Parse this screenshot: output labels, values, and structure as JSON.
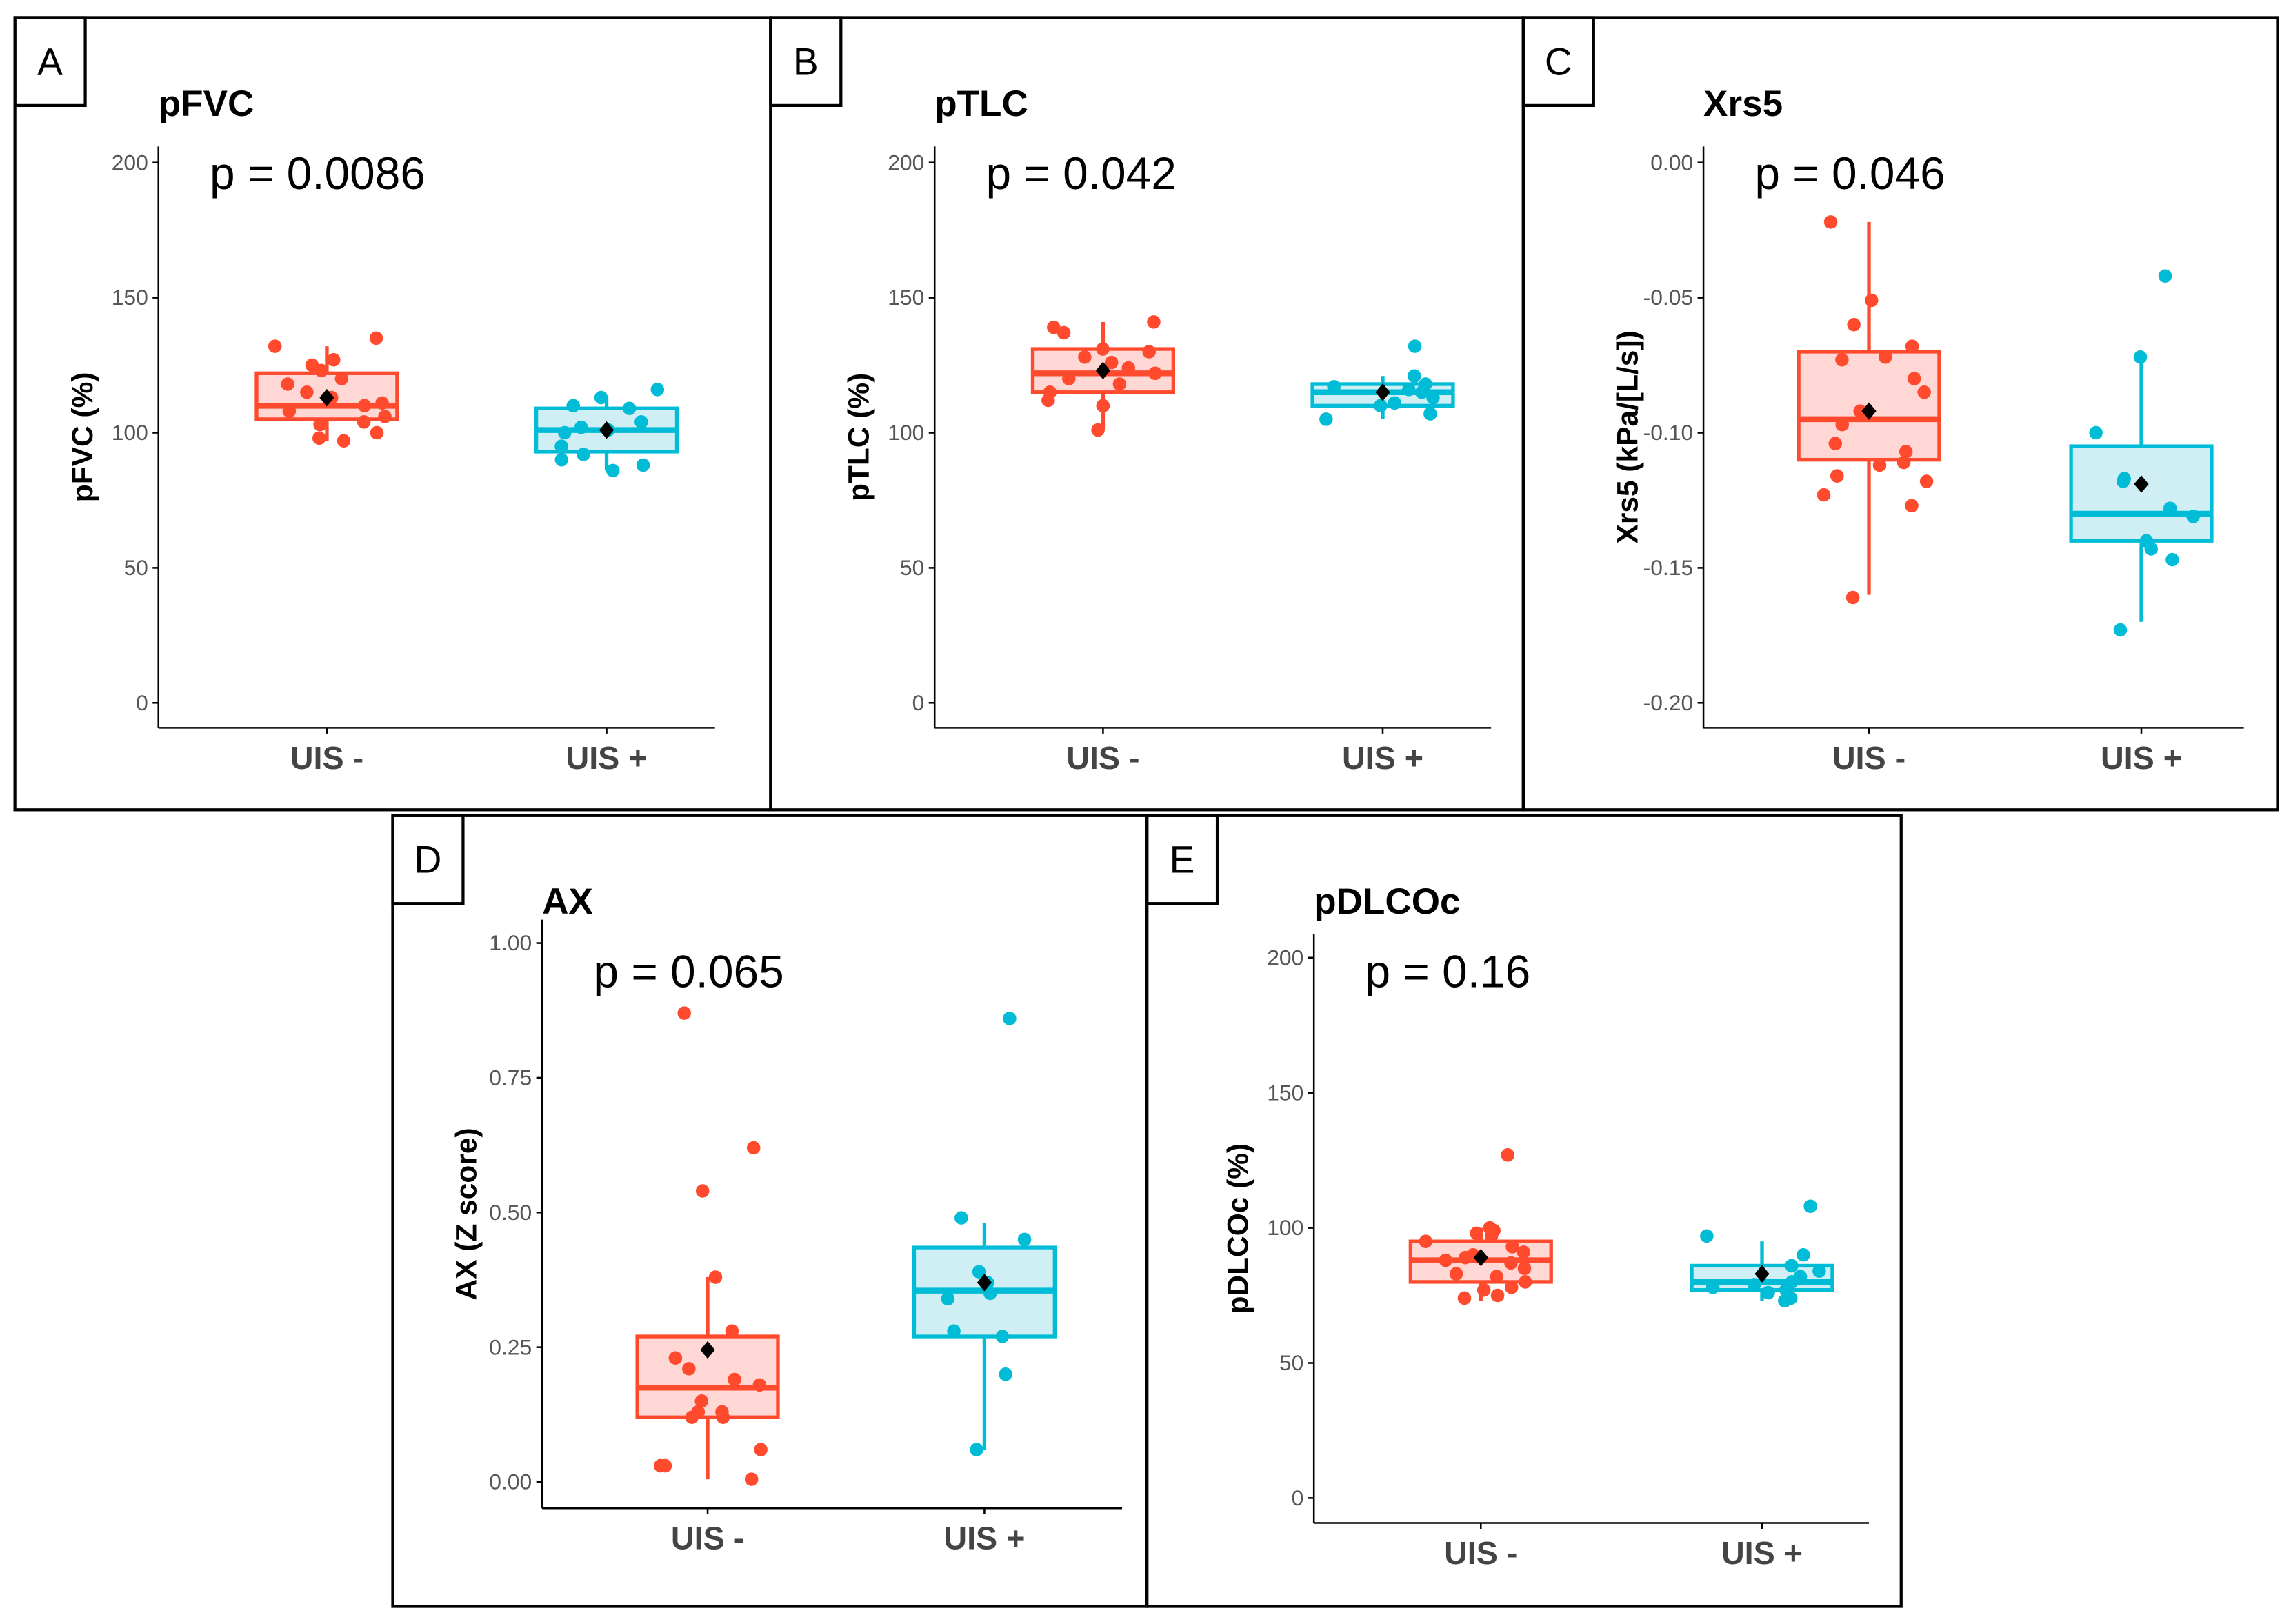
{
  "colors": {
    "neg": "#FF4A2E",
    "neg_fill": "#FFD8D5",
    "pos": "#00BCD6",
    "pos_fill": "#D0EFF5",
    "mean": "#000000"
  },
  "chart_data": [
    {
      "type": "box",
      "panel_label": "A",
      "title": "pFVC",
      "annotation": "p = 0.0086",
      "ylabel": "pFVC (%)",
      "ylim": [
        0,
        200
      ],
      "yticks": [
        0,
        50,
        100,
        150,
        200
      ],
      "ytick_labels": [
        "0",
        "50",
        "100",
        "150",
        "200"
      ],
      "categories": [
        "UIS -",
        "UIS +"
      ],
      "series": [
        {
          "name": "UIS -",
          "q1": 105,
          "median": 110,
          "q3": 122,
          "whisker_low": 97,
          "whisker_high": 132,
          "mean": 113,
          "points": [
            135,
            132,
            127,
            125,
            123,
            120,
            118,
            115,
            113,
            111,
            110,
            108,
            106,
            104,
            103,
            100,
            98,
            97
          ]
        },
        {
          "name": "UIS +",
          "q1": 93,
          "median": 101,
          "q3": 109,
          "whisker_low": 86,
          "whisker_high": 113,
          "mean": 101,
          "points": [
            116,
            113,
            110,
            109,
            104,
            102,
            101,
            100,
            95,
            92,
            90,
            88,
            86
          ]
        }
      ]
    },
    {
      "type": "box",
      "panel_label": "B",
      "title": "pTLC",
      "annotation": "p = 0.042",
      "ylabel": "pTLC (%)",
      "ylim": [
        0,
        200
      ],
      "yticks": [
        0,
        50,
        100,
        150,
        200
      ],
      "ytick_labels": [
        "0",
        "50",
        "100",
        "150",
        "200"
      ],
      "categories": [
        "UIS -",
        "UIS +"
      ],
      "series": [
        {
          "name": "UIS -",
          "q1": 115,
          "median": 122,
          "q3": 131,
          "whisker_low": 101,
          "whisker_high": 141,
          "mean": 123,
          "points": [
            141,
            139,
            137,
            131,
            130,
            128,
            126,
            124,
            122,
            120,
            118,
            115,
            112,
            110,
            101
          ]
        },
        {
          "name": "UIS +",
          "q1": 110,
          "median": 115,
          "q3": 118,
          "whisker_low": 105,
          "whisker_high": 121,
          "mean": 115,
          "points": [
            132,
            121,
            118,
            117,
            116,
            115,
            113,
            111,
            110,
            107,
            105
          ]
        }
      ]
    },
    {
      "type": "box",
      "panel_label": "C",
      "title": "Xrs5",
      "annotation": "p = 0.046",
      "ylabel": "Xrs5 (kPa/[L/s])",
      "ylim": [
        -0.2,
        0
      ],
      "yticks": [
        -0.2,
        -0.15,
        -0.1,
        -0.05,
        0
      ],
      "ytick_labels": [
        "-0.20",
        "-0.15",
        "-0.10",
        "-0.05",
        "0.00"
      ],
      "categories": [
        "UIS -",
        "UIS +"
      ],
      "series": [
        {
          "name": "UIS -",
          "q1": -0.11,
          "median": -0.095,
          "q3": -0.07,
          "whisker_low": -0.16,
          "whisker_high": -0.022,
          "mean": -0.092,
          "points": [
            -0.022,
            -0.051,
            -0.06,
            -0.068,
            -0.072,
            -0.073,
            -0.08,
            -0.085,
            -0.092,
            -0.097,
            -0.104,
            -0.107,
            -0.111,
            -0.112,
            -0.116,
            -0.118,
            -0.123,
            -0.127,
            -0.161
          ]
        },
        {
          "name": "UIS +",
          "q1": -0.14,
          "median": -0.13,
          "q3": -0.105,
          "whisker_low": -0.17,
          "whisker_high": -0.072,
          "mean": -0.119,
          "points": [
            -0.042,
            -0.072,
            -0.1,
            -0.117,
            -0.118,
            -0.128,
            -0.131,
            -0.14,
            -0.143,
            -0.147,
            -0.173
          ]
        }
      ]
    },
    {
      "type": "box",
      "panel_label": "D",
      "title": "AX",
      "annotation": "p = 0.065",
      "ylabel": "AX (Z score)",
      "ylim": [
        0,
        1
      ],
      "yticks": [
        0,
        0.25,
        0.5,
        0.75,
        1
      ],
      "ytick_labels": [
        "0.00",
        "0.25",
        "0.50",
        "0.75",
        "1.00"
      ],
      "categories": [
        "UIS -",
        "UIS +"
      ],
      "series": [
        {
          "name": "UIS -",
          "q1": 0.12,
          "median": 0.175,
          "q3": 0.27,
          "whisker_low": 0.005,
          "whisker_high": 0.38,
          "mean": 0.245,
          "points": [
            0.87,
            0.62,
            0.54,
            0.38,
            0.28,
            0.23,
            0.21,
            0.19,
            0.18,
            0.15,
            0.13,
            0.13,
            0.12,
            0.12,
            0.06,
            0.03,
            0.03,
            0.005
          ]
        },
        {
          "name": "UIS +",
          "q1": 0.27,
          "median": 0.355,
          "q3": 0.435,
          "whisker_low": 0.06,
          "whisker_high": 0.48,
          "mean": 0.37,
          "points": [
            0.86,
            0.49,
            0.45,
            0.39,
            0.37,
            0.35,
            0.34,
            0.28,
            0.27,
            0.2,
            0.06
          ]
        }
      ]
    },
    {
      "type": "box",
      "panel_label": "E",
      "title": "pDLCOc",
      "annotation": "p = 0.16",
      "ylabel": "pDLCOc (%)",
      "ylim": [
        0,
        200
      ],
      "yticks": [
        0,
        50,
        100,
        150,
        200
      ],
      "ytick_labels": [
        "0",
        "50",
        "100",
        "150",
        "200"
      ],
      "categories": [
        "UIS -",
        "UIS +"
      ],
      "series": [
        {
          "name": "UIS -",
          "q1": 80,
          "median": 88,
          "q3": 95,
          "whisker_low": 73,
          "whisker_high": 100,
          "mean": 89,
          "points": [
            127,
            100,
            99,
            98,
            97,
            95,
            93,
            91,
            90,
            89,
            88,
            87,
            85,
            83,
            82,
            80,
            78,
            77,
            75,
            74
          ]
        },
        {
          "name": "UIS +",
          "q1": 77,
          "median": 80,
          "q3": 86,
          "whisker_low": 73,
          "whisker_high": 95,
          "mean": 83,
          "points": [
            108,
            97,
            90,
            86,
            84,
            82,
            80,
            79,
            78,
            77,
            76,
            74,
            73
          ]
        }
      ]
    }
  ]
}
